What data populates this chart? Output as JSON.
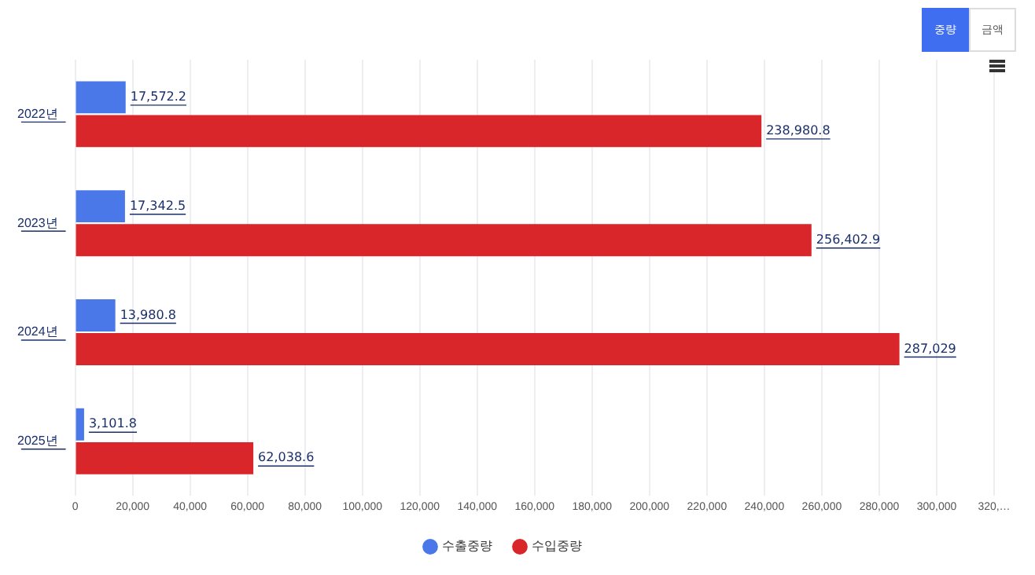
{
  "chart_data": {
    "type": "bar",
    "orientation": "horizontal",
    "categories": [
      "2022년",
      "2023년",
      "2024년",
      "2025년"
    ],
    "series": [
      {
        "name": "수출중량",
        "color": "#4a78e8",
        "values": [
          17572.2,
          17342.5,
          13980.8,
          3101.8
        ],
        "value_labels": [
          "17,572.2",
          "17,342.5",
          "13,980.8",
          "3,101.8"
        ]
      },
      {
        "name": "수입중량",
        "color": "#d9262b",
        "values": [
          238980.8,
          256402.9,
          287029,
          62038.6
        ],
        "value_labels": [
          "238,980.8",
          "256,402.9",
          "287,029",
          "62,038.6"
        ]
      }
    ],
    "xlim": [
      0,
      320000
    ],
    "xticks": [
      0,
      {
        "value": 20000,
        "label": "20,000"
      },
      {
        "value": 40000,
        "label": "40,000"
      },
      {
        "value": 60000,
        "label": "60,000"
      },
      {
        "value": 80000,
        "label": "80,000"
      },
      {
        "value": 100000,
        "label": "100,000"
      },
      {
        "value": 120000,
        "label": "120,000"
      },
      {
        "value": 140000,
        "label": "140,000"
      },
      {
        "value": 160000,
        "label": "160,000"
      },
      {
        "value": 180000,
        "label": "180,000"
      },
      {
        "value": 200000,
        "label": "200,000"
      },
      {
        "value": 220000,
        "label": "220,000"
      },
      {
        "value": 240000,
        "label": "240,000"
      },
      {
        "value": 260000,
        "label": "260,000"
      },
      {
        "value": 280000,
        "label": "280,000"
      },
      {
        "value": 300000,
        "label": "300,000"
      },
      {
        "value": 320000,
        "label": "320,…"
      }
    ],
    "grid": "x",
    "legend": "bottom",
    "annotations": [
      "중량",
      "금액"
    ]
  }
}
